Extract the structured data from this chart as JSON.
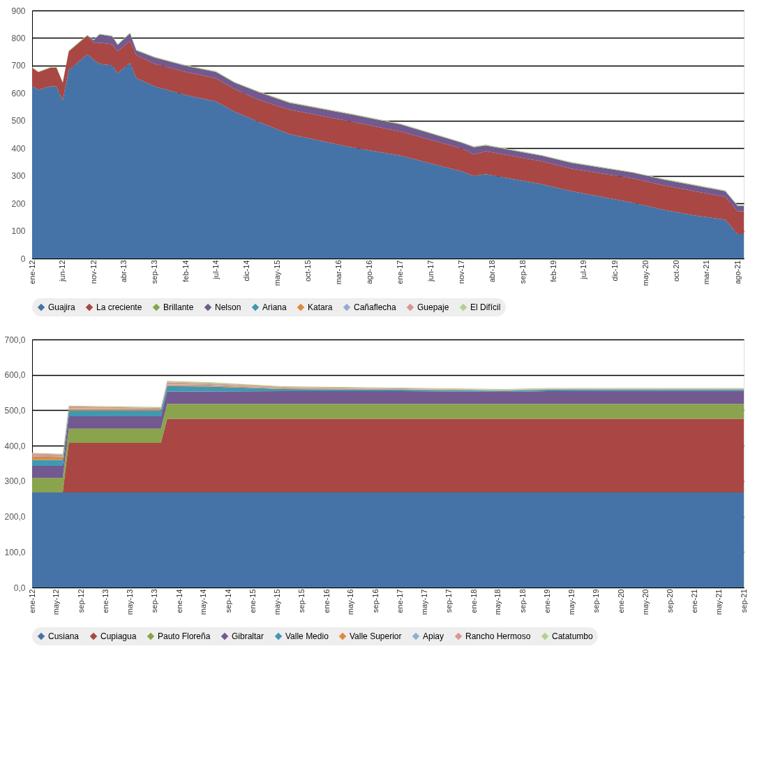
{
  "chart_data": [
    {
      "type": "area",
      "stacked": true,
      "legend": "bottom",
      "grid": "y",
      "x": [
        "2012-01",
        "2012-02",
        "2012-04",
        "2012-05",
        "2012-06",
        "2012-07",
        "2012-10",
        "2012-11",
        "2012-12",
        "2013-02",
        "2013-03",
        "2013-05",
        "2013-06",
        "2013-09",
        "2014-02",
        "2014-07",
        "2014-10",
        "2015-02",
        "2015-07",
        "2016-05",
        "2017-01",
        "2017-11",
        "2018-01",
        "2018-03",
        "2018-12",
        "2019-05",
        "2020-03",
        "2020-08",
        "2021-01",
        "2021-06",
        "2021-08",
        "2021-09"
      ],
      "xlim": [
        "2012-01",
        "2021-09"
      ],
      "xticks": [
        {
          "value": "2012-01",
          "label": "ene-12"
        },
        {
          "value": "2012-06",
          "label": "jun-12"
        },
        {
          "value": "2012-11",
          "label": "nov-12"
        },
        {
          "value": "2013-04",
          "label": "abr-13"
        },
        {
          "value": "2013-09",
          "label": "sep-13"
        },
        {
          "value": "2014-02",
          "label": "feb-14"
        },
        {
          "value": "2014-07",
          "label": "jul-14"
        },
        {
          "value": "2014-12",
          "label": "dic-14"
        },
        {
          "value": "2015-05",
          "label": "may-15"
        },
        {
          "value": "2015-10",
          "label": "oct-15"
        },
        {
          "value": "2016-03",
          "label": "mar-16"
        },
        {
          "value": "2016-08",
          "label": "ago-16"
        },
        {
          "value": "2017-01",
          "label": "ene-17"
        },
        {
          "value": "2017-06",
          "label": "jun-17"
        },
        {
          "value": "2017-11",
          "label": "nov-17"
        },
        {
          "value": "2018-04",
          "label": "abr-18"
        },
        {
          "value": "2018-09",
          "label": "sep-18"
        },
        {
          "value": "2019-02",
          "label": "feb-19"
        },
        {
          "value": "2019-07",
          "label": "jul-19"
        },
        {
          "value": "2019-12",
          "label": "dic-19"
        },
        {
          "value": "2020-05",
          "label": "may-20"
        },
        {
          "value": "2020-10",
          "label": "oct-20"
        },
        {
          "value": "2021-03",
          "label": "mar-21"
        },
        {
          "value": "2021-08",
          "label": "ago-21"
        }
      ],
      "ylim": [
        0,
        900
      ],
      "yticks": [
        0,
        100,
        200,
        300,
        400,
        500,
        600,
        700,
        800,
        900
      ],
      "series": [
        {
          "name": "Guajira",
          "color": "#4673a7",
          "values": [
            626,
            612,
            625,
            624,
            574,
            683,
            741,
            722,
            706,
            701,
            673,
            710,
            655,
            624,
            593,
            570,
            533,
            495,
            451,
            404,
            373,
            316,
            300,
            306,
            270,
            244,
            202,
            176,
            156,
            141,
            89,
            89
          ]
        },
        {
          "name": "La creciente",
          "color": "#a84744",
          "values": [
            66,
            64,
            67,
            69,
            64,
            69,
            68,
            61,
            77,
            76,
            79,
            80,
            83,
            82,
            84,
            84,
            82,
            80,
            89,
            93,
            88,
            83,
            78,
            83,
            83,
            82,
            88,
            89,
            88,
            82,
            82,
            82
          ]
        },
        {
          "name": "Brillante",
          "color": "#89a44c",
          "values": [
            null,
            null,
            null,
            null,
            null,
            null,
            null,
            null,
            null,
            null,
            null,
            null,
            null,
            null,
            null,
            null,
            null,
            null,
            null,
            null,
            null,
            null,
            null,
            null,
            null,
            null,
            null,
            null,
            null,
            null,
            null,
            null
          ]
        },
        {
          "name": "Nelson",
          "color": "#72598f",
          "values": [
            0,
            0,
            0,
            0,
            0,
            0,
            0,
            9,
            30,
            29,
            23,
            27,
            17,
            23,
            22,
            23,
            23,
            28,
            25,
            26,
            26,
            21,
            26,
            21,
            20,
            21,
            21,
            21,
            21,
            21,
            20,
            20
          ]
        },
        {
          "name": "Ariana",
          "color": "#3f99b0",
          "values": [
            null,
            null,
            null,
            null,
            null,
            null,
            null,
            null,
            null,
            null,
            null,
            null,
            null,
            null,
            null,
            null,
            null,
            null,
            null,
            null,
            null,
            null,
            null,
            null,
            null,
            null,
            null,
            null,
            null,
            null,
            null,
            null
          ]
        },
        {
          "name": "Katara",
          "color": "#e0893a",
          "values": [
            null,
            null,
            null,
            null,
            null,
            null,
            null,
            null,
            null,
            null,
            null,
            null,
            null,
            null,
            null,
            null,
            null,
            null,
            null,
            null,
            null,
            null,
            null,
            null,
            null,
            null,
            null,
            null,
            null,
            null,
            null,
            null
          ]
        },
        {
          "name": "Cañaflecha",
          "color": "#95abd6",
          "values": [
            null,
            null,
            null,
            null,
            null,
            null,
            null,
            null,
            null,
            null,
            null,
            null,
            null,
            null,
            null,
            null,
            null,
            null,
            null,
            null,
            null,
            null,
            null,
            null,
            null,
            null,
            null,
            null,
            null,
            null,
            null,
            null
          ]
        },
        {
          "name": "Guepaje",
          "color": "#d89694",
          "values": [
            null,
            null,
            null,
            null,
            null,
            null,
            null,
            null,
            null,
            null,
            null,
            null,
            null,
            null,
            null,
            null,
            null,
            null,
            null,
            null,
            null,
            null,
            null,
            null,
            null,
            null,
            null,
            null,
            null,
            null,
            null,
            null
          ]
        },
        {
          "name": "El Difícil",
          "color": "#b5cf8e",
          "values": [
            3,
            3,
            3,
            3,
            3,
            3,
            3,
            3,
            3,
            3,
            3,
            3,
            3,
            3,
            3,
            3,
            3,
            3,
            3,
            3,
            3,
            3,
            3,
            3,
            3,
            3,
            3,
            3,
            3,
            3,
            3,
            3
          ]
        }
      ]
    },
    {
      "type": "area",
      "stacked": true,
      "legend": "bottom",
      "grid": "y",
      "x": [
        "2012-01",
        "2012-06",
        "2012-07",
        "2013-10",
        "2013-11",
        "2014-06",
        "2015-06",
        "2017-01",
        "2018-06",
        "2019-01",
        "2021-09"
      ],
      "xlim": [
        "2012-01",
        "2021-09"
      ],
      "xticks": [
        {
          "value": "2012-01",
          "label": "ene-12"
        },
        {
          "value": "2012-05",
          "label": "may-12"
        },
        {
          "value": "2012-09",
          "label": "sep-12"
        },
        {
          "value": "2013-01",
          "label": "ene-13"
        },
        {
          "value": "2013-05",
          "label": "may-13"
        },
        {
          "value": "2013-09",
          "label": "sep-13"
        },
        {
          "value": "2014-01",
          "label": "ene-14"
        },
        {
          "value": "2014-05",
          "label": "may-14"
        },
        {
          "value": "2014-09",
          "label": "sep-14"
        },
        {
          "value": "2015-01",
          "label": "ene-15"
        },
        {
          "value": "2015-05",
          "label": "may-15"
        },
        {
          "value": "2015-09",
          "label": "sep-15"
        },
        {
          "value": "2016-01",
          "label": "ene-16"
        },
        {
          "value": "2016-05",
          "label": "may-16"
        },
        {
          "value": "2016-09",
          "label": "sep-16"
        },
        {
          "value": "2017-01",
          "label": "ene-17"
        },
        {
          "value": "2017-05",
          "label": "may-17"
        },
        {
          "value": "2017-09",
          "label": "sep-17"
        },
        {
          "value": "2018-01",
          "label": "ene-18"
        },
        {
          "value": "2018-05",
          "label": "may-18"
        },
        {
          "value": "2018-09",
          "label": "sep-18"
        },
        {
          "value": "2019-01",
          "label": "ene-19"
        },
        {
          "value": "2019-05",
          "label": "may-19"
        },
        {
          "value": "2019-09",
          "label": "sep-19"
        },
        {
          "value": "2020-01",
          "label": "ene-20"
        },
        {
          "value": "2020-05",
          "label": "may-20"
        },
        {
          "value": "2020-09",
          "label": "sep-20"
        },
        {
          "value": "2021-01",
          "label": "ene-21"
        },
        {
          "value": "2021-05",
          "label": "may-21"
        },
        {
          "value": "2021-09",
          "label": "sep-21"
        }
      ],
      "ylim": [
        0,
        700
      ],
      "yticks": [
        {
          "value": 0,
          "label": "0,0"
        },
        {
          "value": 100,
          "label": "100,0"
        },
        {
          "value": 200,
          "label": "200,0"
        },
        {
          "value": 300,
          "label": "300,0"
        },
        {
          "value": 400,
          "label": "400,0"
        },
        {
          "value": 500,
          "label": "500,0"
        },
        {
          "value": 600,
          "label": "600,0"
        },
        {
          "value": 700,
          "label": "700,0"
        }
      ],
      "series": [
        {
          "name": "Cusiana",
          "color": "#4673a7",
          "values": [
            268,
            268,
            268,
            268,
            268,
            268,
            268,
            268,
            268,
            268,
            268
          ]
        },
        {
          "name": "Cupiagua",
          "color": "#a84744",
          "values": [
            0,
            0,
            140,
            140,
            208,
            208,
            208,
            208,
            208,
            208,
            208
          ]
        },
        {
          "name": "Pauto Floreña",
          "color": "#89a44c",
          "values": [
            41,
            41,
            40,
            40,
            42,
            42,
            42,
            42,
            42,
            42,
            42
          ]
        },
        {
          "name": "Gibraltar",
          "color": "#72598f",
          "values": [
            34,
            34,
            35,
            35,
            35,
            35,
            36,
            36,
            34,
            36,
            37
          ]
        },
        {
          "name": "Valle Medio",
          "color": "#3f99b0",
          "values": [
            17,
            17,
            16,
            16,
            15,
            14,
            6,
            4,
            3,
            4,
            3
          ]
        },
        {
          "name": "Valle Superior",
          "color": "#e0893a",
          "values": [
            9,
            8,
            5,
            4,
            3,
            3,
            2,
            1,
            1,
            1,
            1
          ]
        },
        {
          "name": "Apiay",
          "color": "#95abd6",
          "values": [
            2,
            2,
            2,
            2,
            2,
            2,
            1,
            1,
            1,
            1,
            1
          ]
        },
        {
          "name": "Rancho Hermoso",
          "color": "#d89694",
          "values": [
            7,
            5,
            5,
            2,
            6,
            4,
            3,
            2,
            1,
            1,
            1
          ]
        },
        {
          "name": "Catatumbo",
          "color": "#b5cf8e",
          "values": [
            2,
            2,
            2,
            2,
            4,
            3,
            2,
            2,
            2,
            2,
            2
          ]
        }
      ]
    }
  ]
}
